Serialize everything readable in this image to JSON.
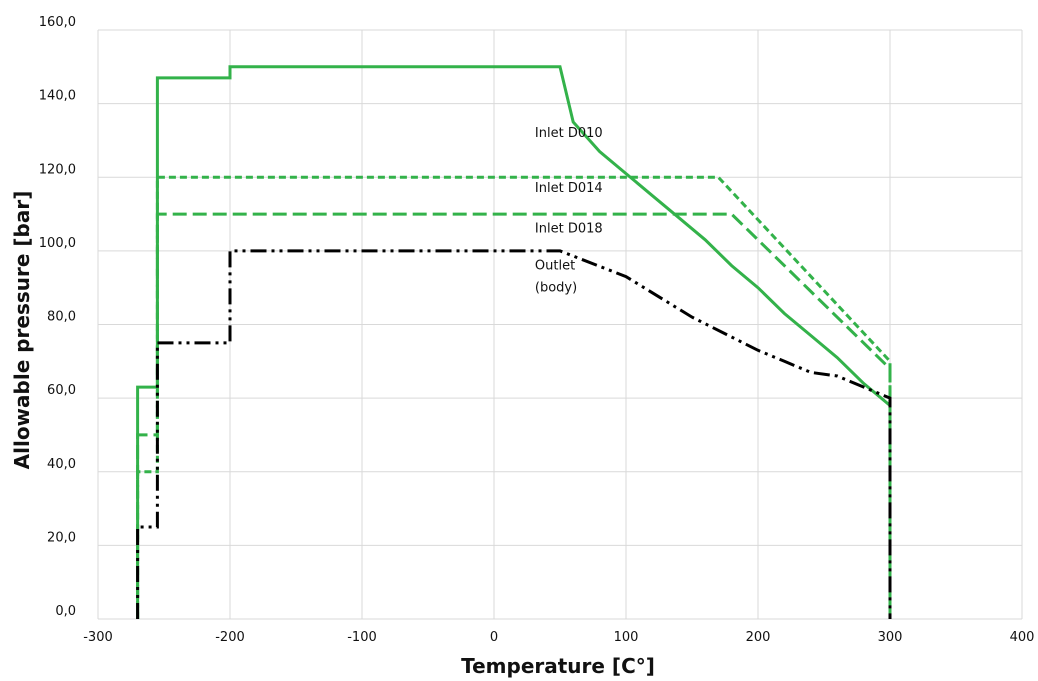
{
  "chart_data": {
    "type": "line",
    "xlabel": "Temperature [C°]",
    "ylabel": "Allowable pressure [bar]",
    "xlim": [
      -300,
      400
    ],
    "ylim": [
      0,
      160
    ],
    "grid": true,
    "x_ticks": [
      "-300",
      "-200",
      "-100",
      "0",
      "100",
      "200",
      "300",
      "400"
    ],
    "y_ticks": [
      "0,0",
      "20,0",
      "40,0",
      "60,0",
      "80,0",
      "100,0",
      "120,0",
      "140,0",
      "160,0"
    ],
    "series": [
      {
        "name": "Inlet D010",
        "color": "#33b24a",
        "style": "solid",
        "points": [
          [
            -270,
            0
          ],
          [
            -270,
            63
          ],
          [
            -255,
            63
          ],
          [
            -255,
            147
          ],
          [
            -200,
            147
          ],
          [
            -200,
            150
          ],
          [
            50,
            150
          ],
          [
            60,
            135
          ],
          [
            80,
            127
          ],
          [
            100,
            121
          ],
          [
            120,
            115
          ],
          [
            140,
            109
          ],
          [
            160,
            103
          ],
          [
            180,
            96
          ],
          [
            200,
            90
          ],
          [
            220,
            83
          ],
          [
            240,
            77
          ],
          [
            260,
            71
          ],
          [
            280,
            64
          ],
          [
            300,
            58
          ],
          [
            300,
            0
          ]
        ]
      },
      {
        "name": "Inlet D014",
        "color": "#33b24a",
        "style": "short-dash",
        "points": [
          [
            -270,
            0
          ],
          [
            -270,
            40
          ],
          [
            -255,
            40
          ],
          [
            -255,
            120
          ],
          [
            170,
            120
          ],
          [
            300,
            70
          ],
          [
            300,
            0
          ]
        ]
      },
      {
        "name": "Inlet D018",
        "color": "#33b24a",
        "style": "long-dash",
        "points": [
          [
            -270,
            0
          ],
          [
            -270,
            50
          ],
          [
            -255,
            50
          ],
          [
            -255,
            110
          ],
          [
            180,
            110
          ],
          [
            300,
            68
          ],
          [
            300,
            0
          ]
        ]
      },
      {
        "name": "Outlet (body)",
        "color": "#000000",
        "style": "dash-dot-dot",
        "points": [
          [
            -270,
            0
          ],
          [
            -270,
            25
          ],
          [
            -255,
            25
          ],
          [
            -255,
            75
          ],
          [
            -200,
            75
          ],
          [
            -200,
            100
          ],
          [
            50,
            100
          ],
          [
            100,
            93
          ],
          [
            150,
            82
          ],
          [
            200,
            73
          ],
          [
            220,
            70
          ],
          [
            240,
            67
          ],
          [
            260,
            66
          ],
          [
            300,
            60
          ],
          [
            300,
            0
          ]
        ]
      }
    ],
    "annotations": [
      {
        "text": "Inlet D010",
        "x": 31,
        "y": 131
      },
      {
        "text": "Inlet D014",
        "x": 31,
        "y": 116
      },
      {
        "text": "Inlet D018",
        "x": 31,
        "y": 105
      },
      {
        "text": "Outlet",
        "x": 31,
        "y": 95
      },
      {
        "text": "(body)",
        "x": 31,
        "y": 89
      }
    ]
  }
}
